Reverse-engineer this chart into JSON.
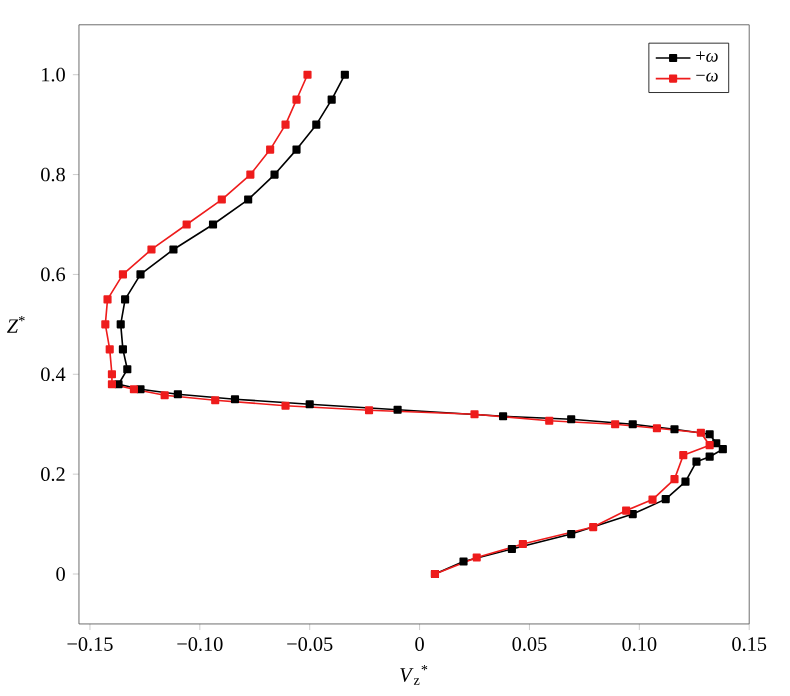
{
  "chart_data": {
    "type": "line",
    "xlabel": "*V*$_{z}$$^{*}$",
    "ylabel": "*Z*$^{*}$",
    "xlim": [
      -0.155,
      0.15
    ],
    "ylim": [
      -0.1,
      1.1
    ],
    "xticks": [
      {
        "value": -0.15,
        "label": "−0.15"
      },
      {
        "value": -0.1,
        "label": "−0.10"
      },
      {
        "value": -0.05,
        "label": "−0.05"
      },
      0,
      0.05,
      {
        "value": 0.1,
        "label": "0.10"
      },
      0.15
    ],
    "yticks": [
      0,
      0.2,
      0.4,
      0.6,
      0.8,
      {
        "value": 1.0,
        "label": "1.0"
      }
    ],
    "grid": false,
    "legend": "top right",
    "marker": "square",
    "line_style": "solid",
    "series": [
      {
        "name": "+*ω*",
        "color": "#000000",
        "x": [
          -0.034,
          -0.04,
          -0.047,
          -0.056,
          -0.066,
          -0.078,
          -0.094,
          -0.112,
          -0.127,
          -0.134,
          -0.136,
          -0.135,
          -0.133,
          -0.137,
          -0.127,
          -0.11,
          -0.084,
          -0.05,
          -0.01,
          0.038,
          0.069,
          0.097,
          0.116,
          0.132,
          0.135,
          0.138,
          0.132,
          0.126,
          0.121,
          0.112,
          0.097,
          0.069,
          0.042,
          0.02,
          0.007
        ],
        "values": [
          1.0,
          0.95,
          0.9,
          0.85,
          0.8,
          0.75,
          0.7,
          0.65,
          0.6,
          0.55,
          0.5,
          0.45,
          0.41,
          0.38,
          0.37,
          0.36,
          0.35,
          0.34,
          0.329,
          0.316,
          0.31,
          0.3,
          0.29,
          0.28,
          0.262,
          0.25,
          0.235,
          0.225,
          0.185,
          0.15,
          0.12,
          0.08,
          0.05,
          0.025,
          0.0
        ]
      },
      {
        "name": "−*ω*",
        "color": "#ee1c1c",
        "x": [
          -0.051,
          -0.056,
          -0.061,
          -0.068,
          -0.077,
          -0.09,
          -0.106,
          -0.122,
          -0.135,
          -0.142,
          -0.143,
          -0.141,
          -0.14,
          -0.14,
          -0.13,
          -0.116,
          -0.093,
          -0.061,
          -0.023,
          0.025,
          0.059,
          0.089,
          0.108,
          0.128,
          0.132,
          0.12,
          0.116,
          0.106,
          0.094,
          0.079,
          0.047,
          0.026,
          0.007
        ],
        "values": [
          1.0,
          0.95,
          0.9,
          0.85,
          0.8,
          0.75,
          0.7,
          0.65,
          0.6,
          0.55,
          0.5,
          0.45,
          0.4,
          0.38,
          0.37,
          0.358,
          0.348,
          0.337,
          0.328,
          0.32,
          0.307,
          0.3,
          0.292,
          0.283,
          0.258,
          0.238,
          0.19,
          0.149,
          0.127,
          0.094,
          0.06,
          0.033,
          0.0
        ]
      }
    ]
  }
}
